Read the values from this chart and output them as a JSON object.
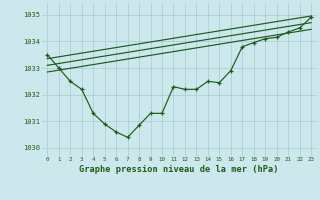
{
  "title": "Graphe pression niveau de la mer (hPa)",
  "bg_color": "#cce8ec",
  "grid_color": "#aacfd4",
  "line_color": "#1a5c1a",
  "x_values": [
    0,
    1,
    2,
    3,
    4,
    5,
    6,
    7,
    8,
    9,
    10,
    11,
    12,
    13,
    14,
    15,
    16,
    17,
    18,
    19,
    20,
    21,
    22,
    23
  ],
  "ylim": [
    1029.7,
    1035.4
  ],
  "yticks": [
    1030,
    1031,
    1032,
    1033,
    1034,
    1035
  ],
  "main_line": [
    1033.5,
    1033.0,
    1032.5,
    1032.2,
    1031.3,
    1030.9,
    1030.6,
    1030.4,
    1030.85,
    1031.3,
    1031.3,
    1032.3,
    1032.2,
    1032.2,
    1032.5,
    1032.45,
    1032.9,
    1033.8,
    1033.95,
    1034.1,
    1034.15,
    1034.35,
    1034.5,
    1034.9
  ],
  "trend_lines": [
    [
      [
        0,
        1033.35
      ],
      [
        23,
        1034.95
      ]
    ],
    [
      [
        0,
        1033.1
      ],
      [
        23,
        1034.7
      ]
    ],
    [
      [
        0,
        1032.85
      ],
      [
        23,
        1034.45
      ]
    ]
  ]
}
